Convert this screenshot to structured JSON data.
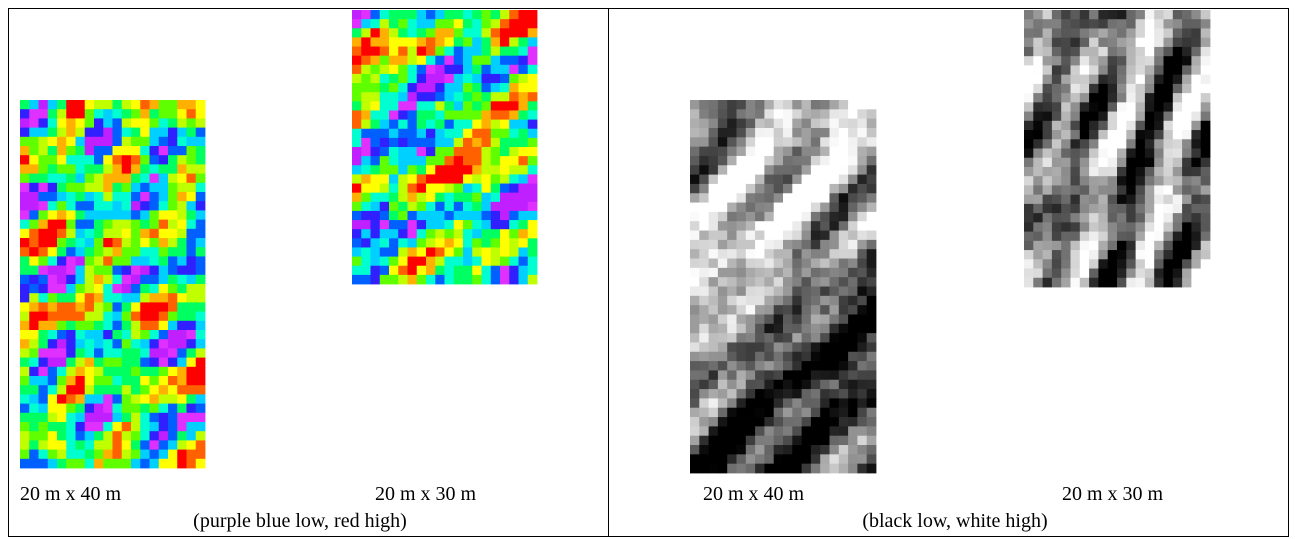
{
  "panels": [
    {
      "images": [
        {
          "label": "20 m x 40 m"
        },
        {
          "label": "20 m x 30 m"
        }
      ],
      "caption": "(purple blue low, red high)"
    },
    {
      "images": [
        {
          "label": "20 m x 40 m"
        },
        {
          "label": "20 m x 30 m"
        }
      ],
      "caption": "(black low, white high)"
    }
  ]
}
